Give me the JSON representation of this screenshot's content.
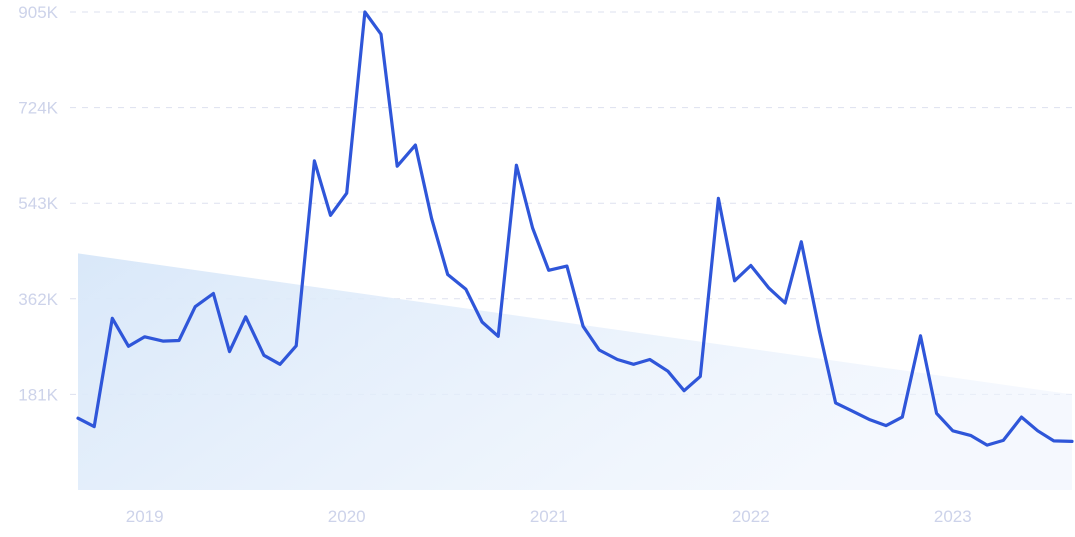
{
  "chart_data": {
    "type": "line",
    "title": "",
    "xlabel": "",
    "ylabel": "",
    "y_ticks": [
      "905K",
      "724K",
      "543K",
      "362K",
      "181K"
    ],
    "y_tick_values": [
      905000,
      724000,
      543000,
      362000,
      181000
    ],
    "x_ticks": [
      "2019",
      "2020",
      "2021",
      "2022",
      "2023"
    ],
    "x_tick_positions": [
      2019.33,
      2020.33,
      2021.33,
      2022.33,
      2023.33
    ],
    "xlim": [
      2019.0,
      2023.92
    ],
    "ylim": [
      0,
      905000
    ],
    "grid": "horizontal dashed",
    "legend": "none",
    "colors": {
      "line": "#2f56d9",
      "grid": "#dde1ef",
      "tick": "#cdd3ea",
      "trend_area": "#d9e8f9"
    },
    "trend_area": {
      "x": [
        2019.0,
        2023.92
      ],
      "y": [
        448000,
        181000
      ]
    },
    "series": [
      {
        "x": [
          2019.0,
          2019.08,
          2019.17,
          2019.25,
          2019.33,
          2019.42,
          2019.5,
          2019.58,
          2019.67,
          2019.75,
          2019.83,
          2019.92,
          2020.0,
          2020.08,
          2020.17,
          2020.25,
          2020.33,
          2020.42,
          2020.5,
          2020.58,
          2020.67,
          2020.75,
          2020.83,
          2020.92,
          2021.0,
          2021.08,
          2021.17,
          2021.25,
          2021.33,
          2021.42,
          2021.5,
          2021.58,
          2021.67,
          2021.75,
          2021.83,
          2021.92,
          2022.0,
          2022.08,
          2022.17,
          2022.25,
          2022.33,
          2022.42,
          2022.5,
          2022.58,
          2022.67,
          2022.75,
          2022.83,
          2022.92,
          2023.0,
          2023.08,
          2023.17,
          2023.25,
          2023.33,
          2023.42,
          2023.5,
          2023.58,
          2023.67,
          2023.75,
          2023.83,
          2023.92
        ],
        "y": [
          136000,
          120000,
          325000,
          272000,
          290000,
          282000,
          283000,
          347000,
          372000,
          262000,
          328000,
          255000,
          238000,
          273000,
          623000,
          520000,
          562000,
          905000,
          863000,
          613000,
          653000,
          514000,
          408000,
          380000,
          318000,
          291000,
          615000,
          496000,
          416000,
          424000,
          310000,
          265000,
          247000,
          238000,
          247000,
          225000,
          188000,
          215000,
          552000,
          396000,
          425000,
          382000,
          354000,
          470000,
          300000,
          165000,
          150000,
          133000,
          122000,
          138000,
          292000,
          145000,
          112000,
          103000,
          85000,
          94000,
          138000,
          112000,
          93000,
          92000
        ]
      }
    ]
  }
}
